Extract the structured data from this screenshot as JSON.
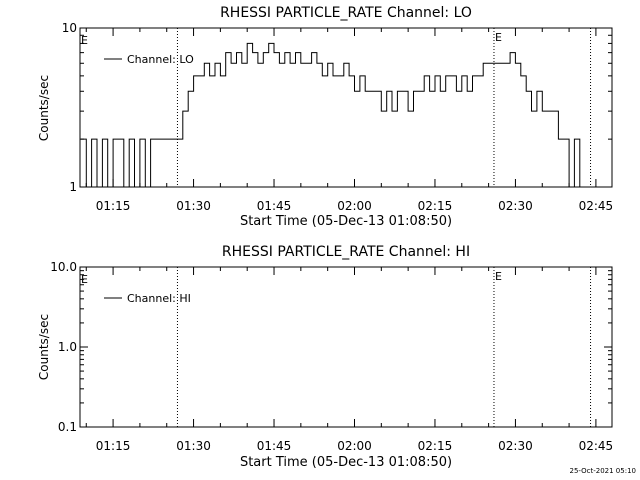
{
  "chart_data": [
    {
      "type": "line",
      "title": "RHESSI PARTICLE_RATE Channel: LO",
      "xlabel": "Start Time (05-Dec-13 01:08:50)",
      "ylabel": "Counts/sec",
      "yscale": "log",
      "ylim": [
        1,
        10
      ],
      "yticks": [
        {
          "value": 1,
          "label": "1"
        },
        {
          "value": 10,
          "label": "10"
        }
      ],
      "xlim": [
        "01:08:50",
        "02:48:00"
      ],
      "xticks": [
        "01:15",
        "01:30",
        "01:45",
        "02:00",
        "02:15",
        "02:30",
        "02:45"
      ],
      "legend": "top-left",
      "series": [
        {
          "name": "Channel: LO",
          "x": [
            "01:09",
            "01:10",
            "01:11",
            "01:12",
            "01:13",
            "01:14",
            "01:15",
            "01:16",
            "01:17",
            "01:18",
            "01:19",
            "01:20",
            "01:21",
            "01:22",
            "01:23",
            "01:24",
            "01:25",
            "01:26",
            "01:27",
            "01:28",
            "01:29",
            "01:30",
            "01:31",
            "01:32",
            "01:33",
            "01:34",
            "01:35",
            "01:36",
            "01:37",
            "01:38",
            "01:39",
            "01:40",
            "01:41",
            "01:42",
            "01:43",
            "01:44",
            "01:45",
            "01:46",
            "01:47",
            "01:48",
            "01:49",
            "01:50",
            "01:51",
            "01:52",
            "01:53",
            "01:54",
            "01:55",
            "01:56",
            "01:57",
            "01:58",
            "01:59",
            "02:00",
            "02:01",
            "02:02",
            "02:03",
            "02:04",
            "02:05",
            "02:06",
            "02:07",
            "02:08",
            "02:09",
            "02:10",
            "02:11",
            "02:12",
            "02:13",
            "02:14",
            "02:15",
            "02:16",
            "02:17",
            "02:18",
            "02:19",
            "02:20",
            "02:21",
            "02:22",
            "02:23",
            "02:24",
            "02:25",
            "02:26",
            "02:27",
            "02:28",
            "02:29",
            "02:30",
            "02:31",
            "02:32",
            "02:33",
            "02:34",
            "02:35",
            "02:36",
            "02:37",
            "02:38",
            "02:39",
            "02:40",
            "02:41",
            "02:42",
            "02:43",
            "02:44"
          ],
          "values": [
            2,
            1,
            2,
            1,
            2,
            1,
            2,
            2,
            1,
            2,
            1,
            2,
            1,
            2,
            2,
            2,
            2,
            2,
            2,
            3,
            4,
            5,
            5,
            6,
            5,
            6,
            5,
            7,
            6,
            7,
            6,
            8,
            7,
            6,
            7,
            8,
            7,
            6,
            7,
            6,
            7,
            6,
            6,
            7,
            6,
            5,
            6,
            5,
            5,
            6,
            5,
            4,
            5,
            4,
            4,
            4,
            3,
            4,
            3,
            4,
            4,
            3,
            4,
            4,
            5,
            4,
            5,
            4,
            5,
            5,
            4,
            5,
            4,
            5,
            5,
            6,
            6,
            6,
            6,
            6,
            7,
            6,
            5,
            4,
            3,
            4,
            3,
            3,
            3,
            2,
            2,
            1,
            2,
            1,
            1,
            1
          ]
        }
      ],
      "markers": [
        {
          "x": "01:27",
          "label": ""
        },
        {
          "x": "02:26",
          "label": "E"
        },
        {
          "x": "02:44",
          "label": ""
        }
      ],
      "corner_label": "E"
    },
    {
      "type": "line",
      "title": "RHESSI PARTICLE_RATE Channel: HI",
      "xlabel": "Start Time (05-Dec-13 01:08:50)",
      "ylabel": "Counts/sec",
      "yscale": "log",
      "ylim": [
        0.1,
        10
      ],
      "yticks": [
        {
          "value": 0.1,
          "label": "0.1"
        },
        {
          "value": 1,
          "label": "1.0"
        },
        {
          "value": 10,
          "label": "10.0"
        }
      ],
      "xlim": [
        "01:08:50",
        "02:48:00"
      ],
      "xticks": [
        "01:15",
        "01:30",
        "01:45",
        "02:00",
        "02:15",
        "02:30",
        "02:45"
      ],
      "legend": "top-left",
      "series": [
        {
          "name": "Channel: HI",
          "x": [],
          "values": []
        }
      ],
      "markers": [
        {
          "x": "01:27",
          "label": ""
        },
        {
          "x": "02:26",
          "label": "E"
        },
        {
          "x": "02:44",
          "label": ""
        }
      ],
      "corner_label": "E"
    }
  ],
  "footer_timestamp": "25-Oct-2021 05:10"
}
